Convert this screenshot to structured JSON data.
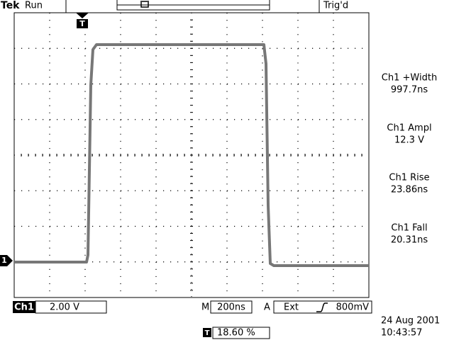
{
  "header": {
    "brand": "Tek",
    "status": "Run",
    "trigger_status": "Trig'd"
  },
  "markers": {
    "trigger": "T",
    "channel": "1"
  },
  "measurements": [
    {
      "label": "Ch1 +Width",
      "value": "997.7ns"
    },
    {
      "label": "Ch1 Ampl",
      "value": "12.3 V"
    },
    {
      "label": "Ch1 Rise",
      "value": "23.86ns"
    },
    {
      "label": "Ch1 Fall",
      "value": "20.31ns"
    }
  ],
  "footer": {
    "channel": "Ch1",
    "volts_per_div": "2.00 V",
    "timebase_label": "M",
    "timebase": "200ns",
    "trigger_label": "A",
    "trigger_source": "Ext",
    "trigger_level": "800mV",
    "trigger_position_icon": "T",
    "trigger_position": "18.60 %",
    "date": "24 Aug 2001",
    "time": "10:43:57"
  }
}
